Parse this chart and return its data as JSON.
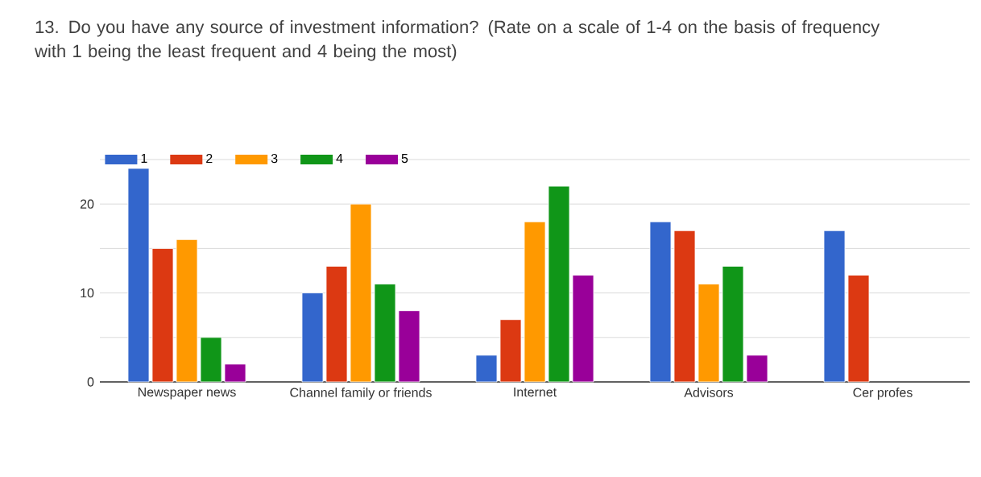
{
  "chart_data": {
    "type": "bar",
    "title": "13. Do you have any source of investment information? (Rate on a scale of 1-4 on the basis of frequency with 1 being the least frequent and 4 being the most)",
    "categories": [
      "Newspaper news",
      "Channel family or friends",
      "Internet",
      "Advisors",
      "Cer profes"
    ],
    "series": [
      {
        "name": "1",
        "color": "#3366cc",
        "values": [
          24,
          10,
          3,
          18,
          17
        ]
      },
      {
        "name": "2",
        "color": "#dc3912",
        "values": [
          15,
          13,
          7,
          17,
          12
        ]
      },
      {
        "name": "3",
        "color": "#ff9900",
        "values": [
          16,
          20,
          18,
          11,
          null
        ]
      },
      {
        "name": "4",
        "color": "#109618",
        "values": [
          5,
          11,
          22,
          13,
          null
        ]
      },
      {
        "name": "5",
        "color": "#990099",
        "values": [
          2,
          8,
          12,
          3,
          null
        ]
      }
    ],
    "ylim": [
      0,
      25
    ],
    "yticks": [
      0,
      {
        "value": 5,
        "label": null
      },
      10,
      {
        "value": 15,
        "label": null
      },
      20,
      {
        "value": 25,
        "label": null
      }
    ],
    "grid": "y",
    "legend": "top left"
  }
}
